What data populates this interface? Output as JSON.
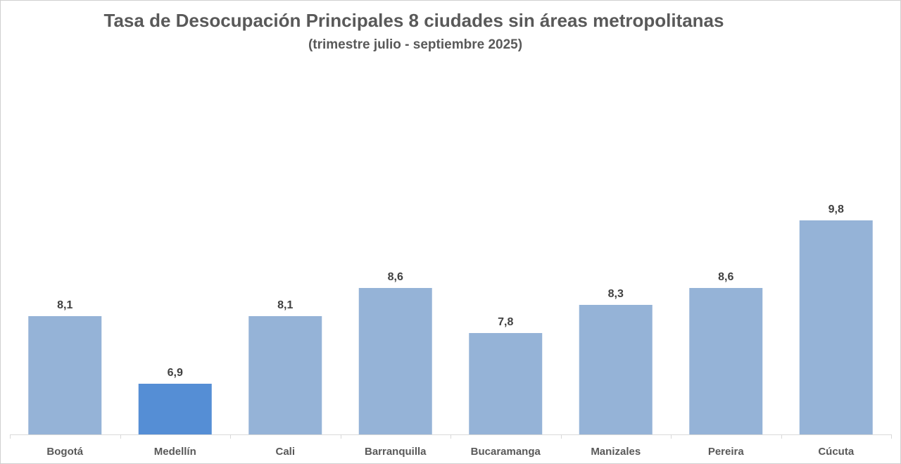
{
  "chart_data": {
    "type": "bar",
    "title": "Tasa de Desocupación Principales 8 ciudades sin áreas metropolitanas",
    "subtitle": "(trimestre  julio - septiembre 2025)",
    "categories": [
      "Bogotá",
      "Medellín",
      "Cali",
      "Barranquilla",
      "Bucaramanga",
      "Manizales",
      "Pereira",
      "Cúcuta"
    ],
    "values": [
      8.1,
      6.9,
      8.1,
      8.6,
      7.8,
      8.3,
      8.6,
      9.8
    ],
    "data_labels": [
      "8,1",
      "6,9",
      "8,1",
      "8,6",
      "7,8",
      "8,3",
      "8,6",
      "9,8"
    ],
    "highlight_category": "Medellín",
    "ylim": [
      6,
      10
    ],
    "grid": false,
    "legend": "none",
    "colors": {
      "bar": "#95b3d7",
      "highlight": "#558ed5",
      "axis": "#d9d9d9",
      "text": "#595959"
    }
  }
}
